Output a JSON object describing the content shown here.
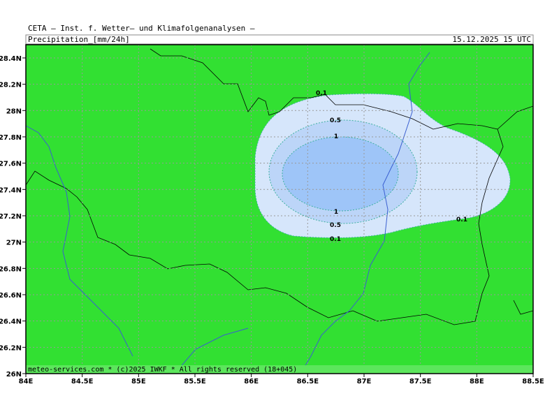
{
  "header": {
    "title": "CETA — Inst. f. Wetter— und Klimafolgenanalysen —",
    "variable": "Precipitation_[mm/24h]",
    "valid": "15.12.2025 15 UTC"
  },
  "map": {
    "x_labels": [
      "84E",
      "84.5E",
      "85E",
      "85.5E",
      "86E",
      "86.5E",
      "87E",
      "87.5E",
      "88E",
      "88.5E"
    ],
    "y_labels": [
      "26N",
      "26.2N",
      "26.4N",
      "26.6N",
      "26.8N",
      "27N",
      "27.2N",
      "27.4N",
      "27.6N",
      "27.8N",
      "28N",
      "28.2N",
      "28.4N"
    ],
    "contour_labels": [
      "0.1",
      "0.5",
      "1",
      "1",
      "0.5",
      "0.1",
      "0.1"
    ]
  },
  "footer": "meteo-services.com * (c)2025 IWKF * All rights reserved (18+045)"
}
